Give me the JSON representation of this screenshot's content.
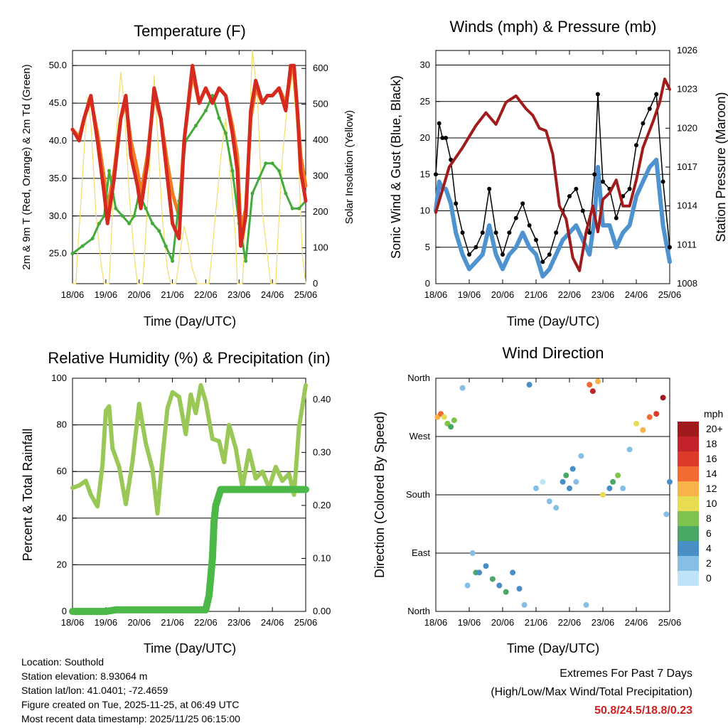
{
  "days": [
    "18/06",
    "19/06",
    "20/06",
    "21/06",
    "22/06",
    "23/06",
    "24/06",
    "25/06"
  ],
  "colors": {
    "temp": "#d42a1f",
    "temp9": "#f07b23",
    "dew": "#44aa3c",
    "solar": "#f2dc6a",
    "gust": "#000000",
    "wind": "#4e93cf",
    "pressure": "#a01c1c",
    "rh": "#9ac856",
    "rain": "#4cb847",
    "extremes": "#cc2222"
  },
  "chart_data": [
    {
      "type": "line",
      "title": "Temperature (F)",
      "xlabel": "Time (Day/UTC)",
      "ylabel": "2m & 9m T (Red, Orange) & 2m Td (Green)",
      "y2label": "Solar Insolation (Yellow)",
      "ylim": [
        21.0,
        52.0
      ],
      "yticks": [
        "25.0",
        "30.0",
        "35.0",
        "40.0",
        "45.0",
        "50.0"
      ],
      "y2lim": [
        0,
        650
      ],
      "y2ticks": [
        "0",
        "100",
        "200",
        "300",
        "400",
        "500",
        "600"
      ],
      "series": [
        {
          "name": "2m Temperature",
          "x": [
            0,
            0.2,
            0.35,
            0.55,
            0.75,
            0.95,
            1.05,
            1.25,
            1.45,
            1.6,
            1.75,
            1.95,
            2.05,
            2.25,
            2.45,
            2.65,
            2.85,
            3.0,
            3.2,
            3.35,
            3.6,
            3.8,
            4.0,
            4.2,
            4.4,
            4.6,
            4.8,
            4.95,
            5.05,
            5.2,
            5.35,
            5.5,
            5.7,
            5.85,
            6.0,
            6.2,
            6.4,
            6.55,
            6.65,
            6.75,
            6.85,
            7.0
          ],
          "y": [
            41.5,
            40,
            43,
            46,
            40,
            33,
            29,
            35,
            43,
            46,
            38,
            34,
            31,
            37,
            47,
            43,
            35,
            29,
            27,
            40,
            50,
            45,
            47,
            45,
            47,
            46,
            41,
            36,
            26,
            30,
            44,
            48,
            45,
            46,
            46,
            47,
            44,
            50,
            50,
            44,
            36,
            32
          ]
        },
        {
          "name": "9m Temperature",
          "x": [
            0,
            0.2,
            0.35,
            0.55,
            0.75,
            0.95,
            1.05,
            1.25,
            1.45,
            1.6,
            1.75,
            1.95,
            2.05,
            2.25,
            2.45,
            2.65,
            2.85,
            3.0,
            3.2,
            3.35,
            3.6,
            3.8,
            4.0,
            4.2,
            4.4,
            4.6,
            4.8,
            4.95,
            5.05,
            5.2,
            5.35,
            5.5,
            5.7,
            5.85,
            6.0,
            6.2,
            6.4,
            6.55,
            6.65,
            6.75,
            6.85,
            7.0
          ],
          "y": [
            41.5,
            40.5,
            43,
            45.5,
            41,
            35,
            31,
            36,
            43,
            45,
            40,
            36,
            33,
            38,
            46,
            43,
            37,
            33,
            30,
            40,
            49,
            45,
            47,
            45,
            47,
            46,
            42,
            38,
            28,
            31,
            43,
            47,
            45,
            46,
            46,
            47,
            45,
            49,
            49.5,
            44,
            38,
            34
          ]
        },
        {
          "name": "2m Dewpoint",
          "x": [
            0,
            0.3,
            0.6,
            0.8,
            0.95,
            1.1,
            1.3,
            1.5,
            1.7,
            1.85,
            2.0,
            2.2,
            2.4,
            2.6,
            2.8,
            3.0,
            3.2,
            3.4,
            3.7,
            4.0,
            4.2,
            4.4,
            4.6,
            4.8,
            5.0,
            5.2,
            5.4,
            5.6,
            5.8,
            6.0,
            6.2,
            6.4,
            6.6,
            6.8,
            7.0
          ],
          "y": [
            25,
            26,
            27,
            29,
            30,
            36,
            31,
            30,
            29,
            30,
            33,
            31,
            29,
            28,
            26,
            24,
            32,
            40,
            42,
            44,
            46,
            43,
            41,
            36,
            29,
            24,
            33,
            35,
            37,
            37,
            36,
            33,
            31,
            31,
            32
          ]
        },
        {
          "name": "Solar Insolation",
          "axis": "right",
          "x": [
            0,
            0.1,
            0.15,
            0.3,
            0.45,
            0.55,
            0.7,
            0.85,
            0.95,
            1.1,
            1.15,
            1.3,
            1.45,
            1.55,
            1.7,
            1.85,
            1.95,
            2.1,
            2.15,
            2.3,
            2.45,
            2.55,
            2.7,
            2.85,
            2.95,
            3.1,
            3.15,
            3.25,
            3.35,
            3.45,
            3.6,
            3.75,
            4.1,
            4.15,
            4.3,
            4.45,
            4.6,
            4.75,
            4.9,
            4.95,
            5.1,
            5.15,
            5.3,
            5.4,
            5.55,
            5.7,
            5.95,
            6.1,
            6.15,
            6.3,
            6.45,
            6.6,
            6.75,
            6.9,
            7.0
          ],
          "y": [
            0,
            0,
            80,
            300,
            520,
            450,
            200,
            60,
            0,
            0,
            100,
            400,
            590,
            500,
            250,
            80,
            0,
            0,
            60,
            300,
            580,
            420,
            180,
            40,
            0,
            0,
            30,
            100,
            160,
            120,
            40,
            0,
            0,
            50,
            200,
            350,
            460,
            300,
            120,
            0,
            0,
            90,
            420,
            650,
            520,
            200,
            0,
            0,
            100,
            350,
            500,
            580,
            420,
            80,
            0
          ]
        }
      ]
    },
    {
      "type": "scatter",
      "title": "Winds (mph) & Pressure (mb)",
      "xlabel": "Time (Day/UTC)",
      "ylabel": "Sonic Wind & Gust (Blue, Black)",
      "y2label": "Station Pressure (Maroon)",
      "ylim": [
        0,
        32
      ],
      "yticks": [
        "0",
        "5",
        "10",
        "15",
        "20",
        "25",
        "30"
      ],
      "y2lim": [
        1008,
        1026
      ],
      "y2ticks": [
        "1008",
        "1011",
        "1014",
        "1017",
        "1020",
        "1023",
        "1026"
      ],
      "series": [
        {
          "name": "Sonic Wind Gust",
          "x": [
            0,
            0.1,
            0.2,
            0.3,
            0.45,
            0.6,
            0.8,
            1.0,
            1.2,
            1.4,
            1.6,
            1.8,
            2.0,
            2.2,
            2.4,
            2.6,
            2.8,
            3.0,
            3.2,
            3.4,
            3.6,
            3.8,
            4.0,
            4.2,
            4.4,
            4.6,
            4.75,
            4.85,
            5.0,
            5.2,
            5.4,
            5.6,
            5.8,
            6.0,
            6.2,
            6.4,
            6.6,
            6.8,
            7.0
          ],
          "y": [
            15,
            22,
            20,
            20,
            17,
            11,
            7,
            4,
            5,
            7,
            13,
            7,
            4,
            7,
            9,
            11,
            8,
            6,
            3,
            4,
            7,
            10,
            12,
            13,
            10,
            7,
            15,
            26,
            14,
            13,
            9,
            12,
            13,
            19,
            22,
            24,
            26,
            14,
            5
          ]
        },
        {
          "name": "Sonic Wind",
          "x": [
            0,
            0.1,
            0.2,
            0.3,
            0.45,
            0.6,
            0.8,
            1.0,
            1.2,
            1.4,
            1.6,
            1.8,
            2.0,
            2.2,
            2.4,
            2.6,
            2.8,
            3.0,
            3.2,
            3.4,
            3.6,
            3.8,
            4.0,
            4.2,
            4.4,
            4.6,
            4.75,
            4.85,
            5.0,
            5.2,
            5.4,
            5.6,
            5.8,
            6.0,
            6.2,
            6.4,
            6.6,
            6.8,
            7.0
          ],
          "y": [
            10,
            14,
            13,
            13,
            11,
            7,
            4,
            2,
            3,
            4,
            8,
            4,
            2,
            4,
            5,
            7,
            5,
            4,
            1,
            2,
            4,
            6,
            7,
            8,
            6,
            4,
            9,
            16,
            8,
            8,
            5,
            7,
            8,
            12,
            14,
            16,
            17,
            8,
            3
          ]
        },
        {
          "name": "Station Pressure",
          "axis": "right",
          "x": [
            0,
            0.4,
            0.8,
            1.2,
            1.5,
            1.8,
            2.1,
            2.4,
            2.7,
            2.9,
            3.1,
            3.3,
            3.5,
            3.7,
            3.9,
            4.1,
            4.3,
            4.5,
            4.7,
            4.85,
            5.0,
            5.2,
            5.4,
            5.6,
            5.8,
            6.0,
            6.2,
            6.5,
            6.7,
            6.85,
            7.0
          ],
          "y": [
            1013.5,
            1017,
            1018.5,
            1020.2,
            1021.2,
            1020.3,
            1022,
            1022.5,
            1021.5,
            1021,
            1020,
            1019.8,
            1018,
            1014,
            1013,
            1010,
            1009,
            1012,
            1014,
            1012,
            1014.5,
            1015,
            1016,
            1014,
            1014,
            1016,
            1018.5,
            1020.5,
            1022,
            1023.8,
            1023
          ]
        }
      ]
    },
    {
      "type": "line",
      "title": "Relative Humidity (%) & Precipitation (in)",
      "xlabel": "Time (Day/UTC)",
      "ylabel": "Percent & Total Rainfall",
      "ylim": [
        0,
        100
      ],
      "yticks": [
        "0",
        "20",
        "40",
        "60",
        "80",
        "100"
      ],
      "y2lim": [
        0,
        0.44
      ],
      "y2ticks": [
        "0.00",
        "0.10",
        "0.20",
        "0.30",
        "0.40"
      ],
      "series": [
        {
          "name": "Relative Humidity",
          "x": [
            0,
            0.2,
            0.4,
            0.55,
            0.75,
            0.9,
            1.0,
            1.1,
            1.2,
            1.4,
            1.6,
            1.8,
            2.0,
            2.2,
            2.4,
            2.55,
            2.7,
            2.85,
            3.0,
            3.2,
            3.4,
            3.55,
            3.7,
            3.85,
            4.0,
            4.2,
            4.4,
            4.55,
            4.7,
            4.9,
            5.1,
            5.3,
            5.5,
            5.7,
            5.9,
            6.1,
            6.3,
            6.5,
            6.65,
            6.8,
            7.0
          ],
          "y": [
            53,
            54,
            56,
            50,
            45,
            63,
            86,
            88,
            70,
            62,
            46,
            64,
            89,
            72,
            61,
            42,
            66,
            87,
            94,
            92,
            76,
            93,
            85,
            97,
            90,
            74,
            73,
            64,
            80,
            70,
            53,
            69,
            57,
            60,
            53,
            62,
            56,
            59,
            50,
            79,
            97
          ]
        },
        {
          "name": "Total Precipitation",
          "axis": "right",
          "x": [
            0,
            1.0,
            1.3,
            2.0,
            3.0,
            4.0,
            4.1,
            4.2,
            4.25,
            4.3,
            4.45,
            5.0,
            6.0,
            7.0
          ],
          "y": [
            0.0,
            0.0,
            0.003,
            0.003,
            0.003,
            0.003,
            0.03,
            0.1,
            0.17,
            0.2,
            0.23,
            0.23,
            0.23,
            0.23
          ]
        }
      ]
    },
    {
      "type": "scatter",
      "title": "Wind Direction",
      "xlabel": "Time (Day/UTC)",
      "ylabel": "Direction (Colored By Speed)",
      "yticks": [
        "North",
        "East",
        "South",
        "West",
        "North"
      ],
      "ylim": [
        0,
        360
      ],
      "colorbar": {
        "title": "mph",
        "labels": [
          "0",
          "2",
          "4",
          "6",
          "8",
          "10",
          "12",
          "14",
          "16",
          "18",
          "20+"
        ],
        "colors": [
          "#bfe4f7",
          "#86bfe6",
          "#4a8ec6",
          "#4aa866",
          "#7fc24d",
          "#e8dc52",
          "#f7b24a",
          "#f26b32",
          "#dd3a2a",
          "#c4222a",
          "#a01a1d"
        ]
      },
      "series": [
        {
          "name": "Wind Direction",
          "x": [
            0.05,
            0.15,
            0.25,
            0.35,
            0.45,
            0.55,
            0.8,
            0.95,
            1.1,
            1.2,
            1.3,
            1.5,
            1.7,
            1.9,
            2.1,
            2.3,
            2.5,
            2.65,
            2.8,
            3.0,
            3.2,
            3.4,
            3.6,
            3.8,
            3.9,
            4.0,
            4.1,
            4.2,
            4.35,
            4.5,
            4.6,
            4.7,
            4.85,
            5.0,
            5.2,
            5.3,
            5.45,
            5.6,
            5.8,
            6.0,
            6.2,
            6.4,
            6.6,
            6.8,
            6.9,
            7.0
          ],
          "y": [
            300,
            305,
            300,
            290,
            285,
            295,
            345,
            40,
            90,
            60,
            60,
            70,
            50,
            40,
            30,
            60,
            35,
            10,
            350,
            190,
            200,
            170,
            160,
            200,
            210,
            190,
            220,
            200,
            240,
            10,
            350,
            340,
            355,
            180,
            190,
            200,
            210,
            190,
            250,
            290,
            280,
            300,
            305,
            330,
            150,
            200
          ],
          "speed": [
            12,
            14,
            10,
            8,
            6,
            8,
            3,
            2,
            2,
            6,
            4,
            5,
            7,
            4,
            6,
            4,
            5,
            3,
            4,
            2,
            1,
            3,
            2,
            4,
            6,
            5,
            4,
            2,
            3,
            2,
            14,
            18,
            12,
            10,
            4,
            6,
            8,
            3,
            2,
            10,
            12,
            14,
            16,
            20,
            2,
            4
          ]
        }
      ]
    }
  ],
  "footer": {
    "location": "Location: Southold",
    "elevation": "Station elevation: 8.93064 m",
    "latlon": "Station lat/lon: 41.0401; -72.4659",
    "created": "Figure created on Tue, 2025-11-25, at 06:49 UTC",
    "recent": "Most recent data timestamp: 2025/11/25 06:15:00"
  },
  "extremes": {
    "title": "Extremes For Past 7 Days",
    "subtitle": "(High/Low/Max Wind/Total Precipitation)",
    "values": "50.8/24.5/18.8/0.23"
  }
}
